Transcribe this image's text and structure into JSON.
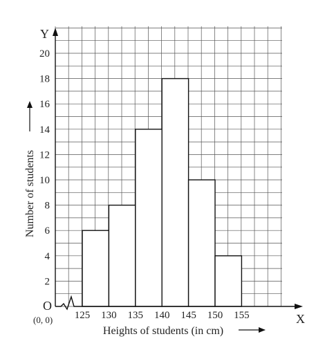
{
  "chart_data": {
    "type": "bar",
    "subtype": "histogram",
    "title": "",
    "xlabel": "Heights of students (in cm)",
    "ylabel": "Number of students",
    "x_axis_letter": "X",
    "y_axis_letter": "Y",
    "origin_label": "O",
    "origin_coordinates": "(0, 0)",
    "x_axis_break": true,
    "class_edges": [
      125,
      130,
      135,
      140,
      145,
      150,
      155
    ],
    "x_tick_labels": [
      "125",
      "130",
      "135",
      "140",
      "145",
      "150",
      "155"
    ],
    "categories": [
      "125-130",
      "130-135",
      "135-140",
      "140-145",
      "145-150",
      "150-155"
    ],
    "values": [
      6,
      8,
      14,
      18,
      10,
      4
    ],
    "ylim": [
      0,
      20
    ],
    "y_ticks": [
      2,
      4,
      6,
      8,
      10,
      12,
      14,
      16,
      18,
      20
    ],
    "y_tick_labels": [
      "2",
      "4",
      "6",
      "8",
      "10",
      "12",
      "14",
      "16",
      "18",
      "20"
    ],
    "grid": true,
    "legend": "none",
    "colors": {
      "bar_fill": "#ffffff",
      "bar_stroke": "#111111",
      "grid": "#555555",
      "text": "#222222"
    }
  }
}
